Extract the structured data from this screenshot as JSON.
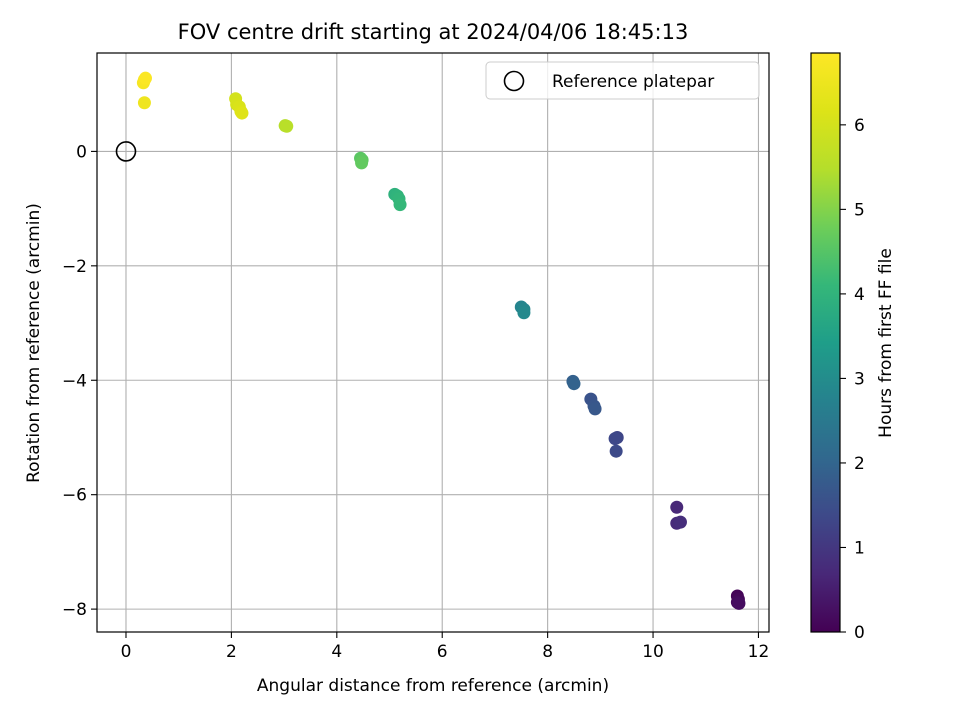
{
  "chart_data": {
    "type": "scatter",
    "title": "FOV centre drift starting at 2024/04/06 18:45:13",
    "xlabel": "Angular distance from reference (arcmin)",
    "ylabel": "Rotation from reference (arcmin)",
    "xlim": [
      -0.55,
      12.2
    ],
    "ylim": [
      -8.4,
      1.72
    ],
    "xticks": [
      0,
      2,
      4,
      6,
      8,
      10,
      12
    ],
    "yticks": [
      0,
      -2,
      -4,
      -6,
      -8
    ],
    "xtick_labels": [
      "0",
      "2",
      "4",
      "6",
      "8",
      "10",
      "12"
    ],
    "ytick_labels": [
      "0",
      "−2",
      "−4",
      "−6",
      "−8"
    ],
    "grid": true,
    "legend": {
      "placement": "top-right",
      "entries": [
        "Reference platepar"
      ]
    },
    "reference_point": {
      "x": 0,
      "y": 0
    },
    "colorbar": {
      "label": "Hours from first FF file",
      "colormap": "viridis",
      "range": [
        0,
        6.85
      ],
      "ticks": [
        0,
        1,
        2,
        3,
        4,
        5,
        6
      ],
      "tick_labels": [
        "0",
        "1",
        "2",
        "3",
        "4",
        "5",
        "6"
      ]
    },
    "points": [
      {
        "x": 11.6,
        "y": -7.77,
        "h": 0.05
      },
      {
        "x": 11.62,
        "y": -7.83,
        "h": 0.1
      },
      {
        "x": 11.6,
        "y": -7.88,
        "h": 0.15
      },
      {
        "x": 11.63,
        "y": -7.9,
        "h": 0.2
      },
      {
        "x": 10.45,
        "y": -6.22,
        "h": 0.7
      },
      {
        "x": 10.45,
        "y": -6.5,
        "h": 0.75
      },
      {
        "x": 10.52,
        "y": -6.48,
        "h": 0.8
      },
      {
        "x": 9.32,
        "y": -5.0,
        "h": 1.3
      },
      {
        "x": 9.28,
        "y": -5.02,
        "h": 1.35
      },
      {
        "x": 9.3,
        "y": -5.24,
        "h": 1.4
      },
      {
        "x": 8.82,
        "y": -4.33,
        "h": 1.6
      },
      {
        "x": 8.88,
        "y": -4.45,
        "h": 1.65
      },
      {
        "x": 8.9,
        "y": -4.5,
        "h": 1.7
      },
      {
        "x": 8.48,
        "y": -4.02,
        "h": 1.9
      },
      {
        "x": 8.5,
        "y": -4.06,
        "h": 1.95
      },
      {
        "x": 7.5,
        "y": -2.72,
        "h": 2.8
      },
      {
        "x": 7.55,
        "y": -2.76,
        "h": 2.85
      },
      {
        "x": 7.55,
        "y": -2.82,
        "h": 2.9
      },
      {
        "x": 5.1,
        "y": -0.75,
        "h": 3.95
      },
      {
        "x": 5.15,
        "y": -0.78,
        "h": 4.0
      },
      {
        "x": 5.18,
        "y": -0.83,
        "h": 4.05
      },
      {
        "x": 5.2,
        "y": -0.93,
        "h": 4.1
      },
      {
        "x": 4.45,
        "y": -0.12,
        "h": 4.55
      },
      {
        "x": 4.48,
        "y": -0.15,
        "h": 4.6
      },
      {
        "x": 4.47,
        "y": -0.2,
        "h": 4.65
      },
      {
        "x": 3.02,
        "y": 0.45,
        "h": 5.5
      },
      {
        "x": 3.05,
        "y": 0.44,
        "h": 5.55
      },
      {
        "x": 2.08,
        "y": 0.92,
        "h": 6.0
      },
      {
        "x": 2.1,
        "y": 0.82,
        "h": 6.05
      },
      {
        "x": 2.15,
        "y": 0.78,
        "h": 6.1
      },
      {
        "x": 2.18,
        "y": 0.7,
        "h": 6.15
      },
      {
        "x": 2.2,
        "y": 0.67,
        "h": 6.2
      },
      {
        "x": 0.35,
        "y": 0.85,
        "h": 6.55
      },
      {
        "x": 0.33,
        "y": 1.2,
        "h": 6.7
      },
      {
        "x": 0.35,
        "y": 1.25,
        "h": 6.75
      },
      {
        "x": 0.37,
        "y": 1.28,
        "h": 6.8
      }
    ]
  }
}
